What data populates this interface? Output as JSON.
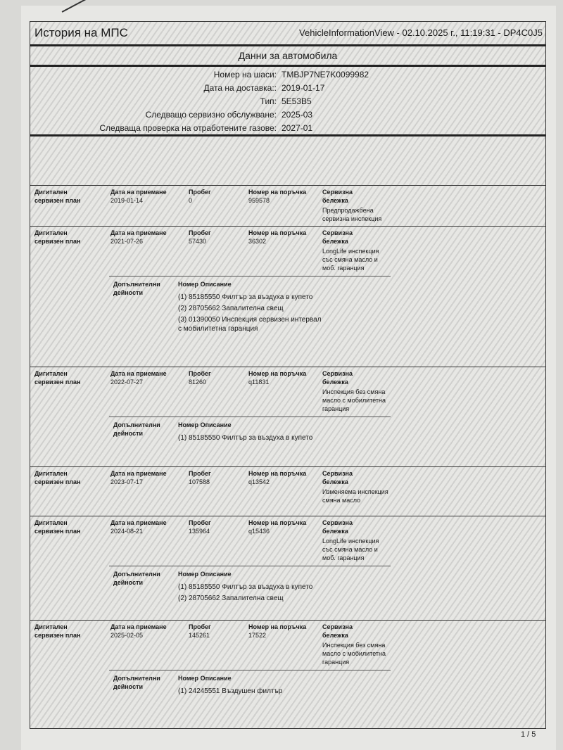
{
  "header": {
    "title": "История на МПС",
    "meta": "VehicleInformationView - 02.10.2025 г., 11:19:31 - DP4C0J5"
  },
  "vehicle": {
    "section_title": "Данни за автомобила",
    "fields": [
      {
        "label": "Номер на шаси:",
        "value": "TMBJP7NE7K0099982"
      },
      {
        "label": "Дата на доставка::",
        "value": "2019-01-17"
      },
      {
        "label": "Тип:",
        "value": "5E53B5"
      },
      {
        "label": "Следващо сервизно обслужване:",
        "value": "2025-03"
      },
      {
        "label": "Следваща проверка на отработените газове:",
        "value": "2027-01"
      }
    ]
  },
  "labels": {
    "type": "Дигитален сервизен план",
    "date": "Дата на приемане",
    "mileage": "Пробег",
    "order": "Номер на поръчка",
    "note": "Сервизна бележка",
    "extra": "Допълнителни дейности",
    "number": "Номер",
    "description": "Описание"
  },
  "entries": [
    {
      "date": "2019-01-14",
      "mileage": "0",
      "order": "959578",
      "note": "Предпродажбена сервизна инспекция",
      "extras": []
    },
    {
      "date": "2021-07-26",
      "mileage": "57430",
      "order": "36302",
      "note": "LongLife инспекция със смяна масло и моб. гаранция",
      "extras": [
        {
          "number": "(1) 85185550",
          "description": "Филтър за въздуха в купето"
        },
        {
          "number": "(2) 28705662",
          "description": "Запалителна свещ"
        },
        {
          "number": "(3) 01390050",
          "description": "Инспекция сервизен интервал с мобилитетна гаранция"
        }
      ]
    },
    {
      "date": "2022-07-27",
      "mileage": "81260",
      "order": "q11831",
      "note": "Инспекция без смяна масло с мобилитетна гаранция",
      "extras": [
        {
          "number": "(1) 85185550",
          "description": "Филтър за въздуха в купето"
        }
      ]
    },
    {
      "date": "2023-07-17",
      "mileage": "107588",
      "order": "q13542",
      "note": "Изменяема инспекция смяна масло",
      "extras": []
    },
    {
      "date": "2024-08-21",
      "mileage": "135964",
      "order": "q15436",
      "note": "LongLife инспекция със смяна масло и моб. гаранция",
      "extras": [
        {
          "number": "(1) 85185550",
          "description": "Филтър за въздуха в купето"
        },
        {
          "number": "(2) 28705662",
          "description": "Запалителна свещ"
        }
      ]
    },
    {
      "date": "2025-02-05",
      "mileage": "145261",
      "order": "17522",
      "note": "Инспекция без смяна масло с мобилитетна гаранция",
      "extras": [
        {
          "number": "(1) 24245551",
          "description": "Въздушен филтър"
        }
      ]
    }
  ],
  "page_number": "1 / 5"
}
